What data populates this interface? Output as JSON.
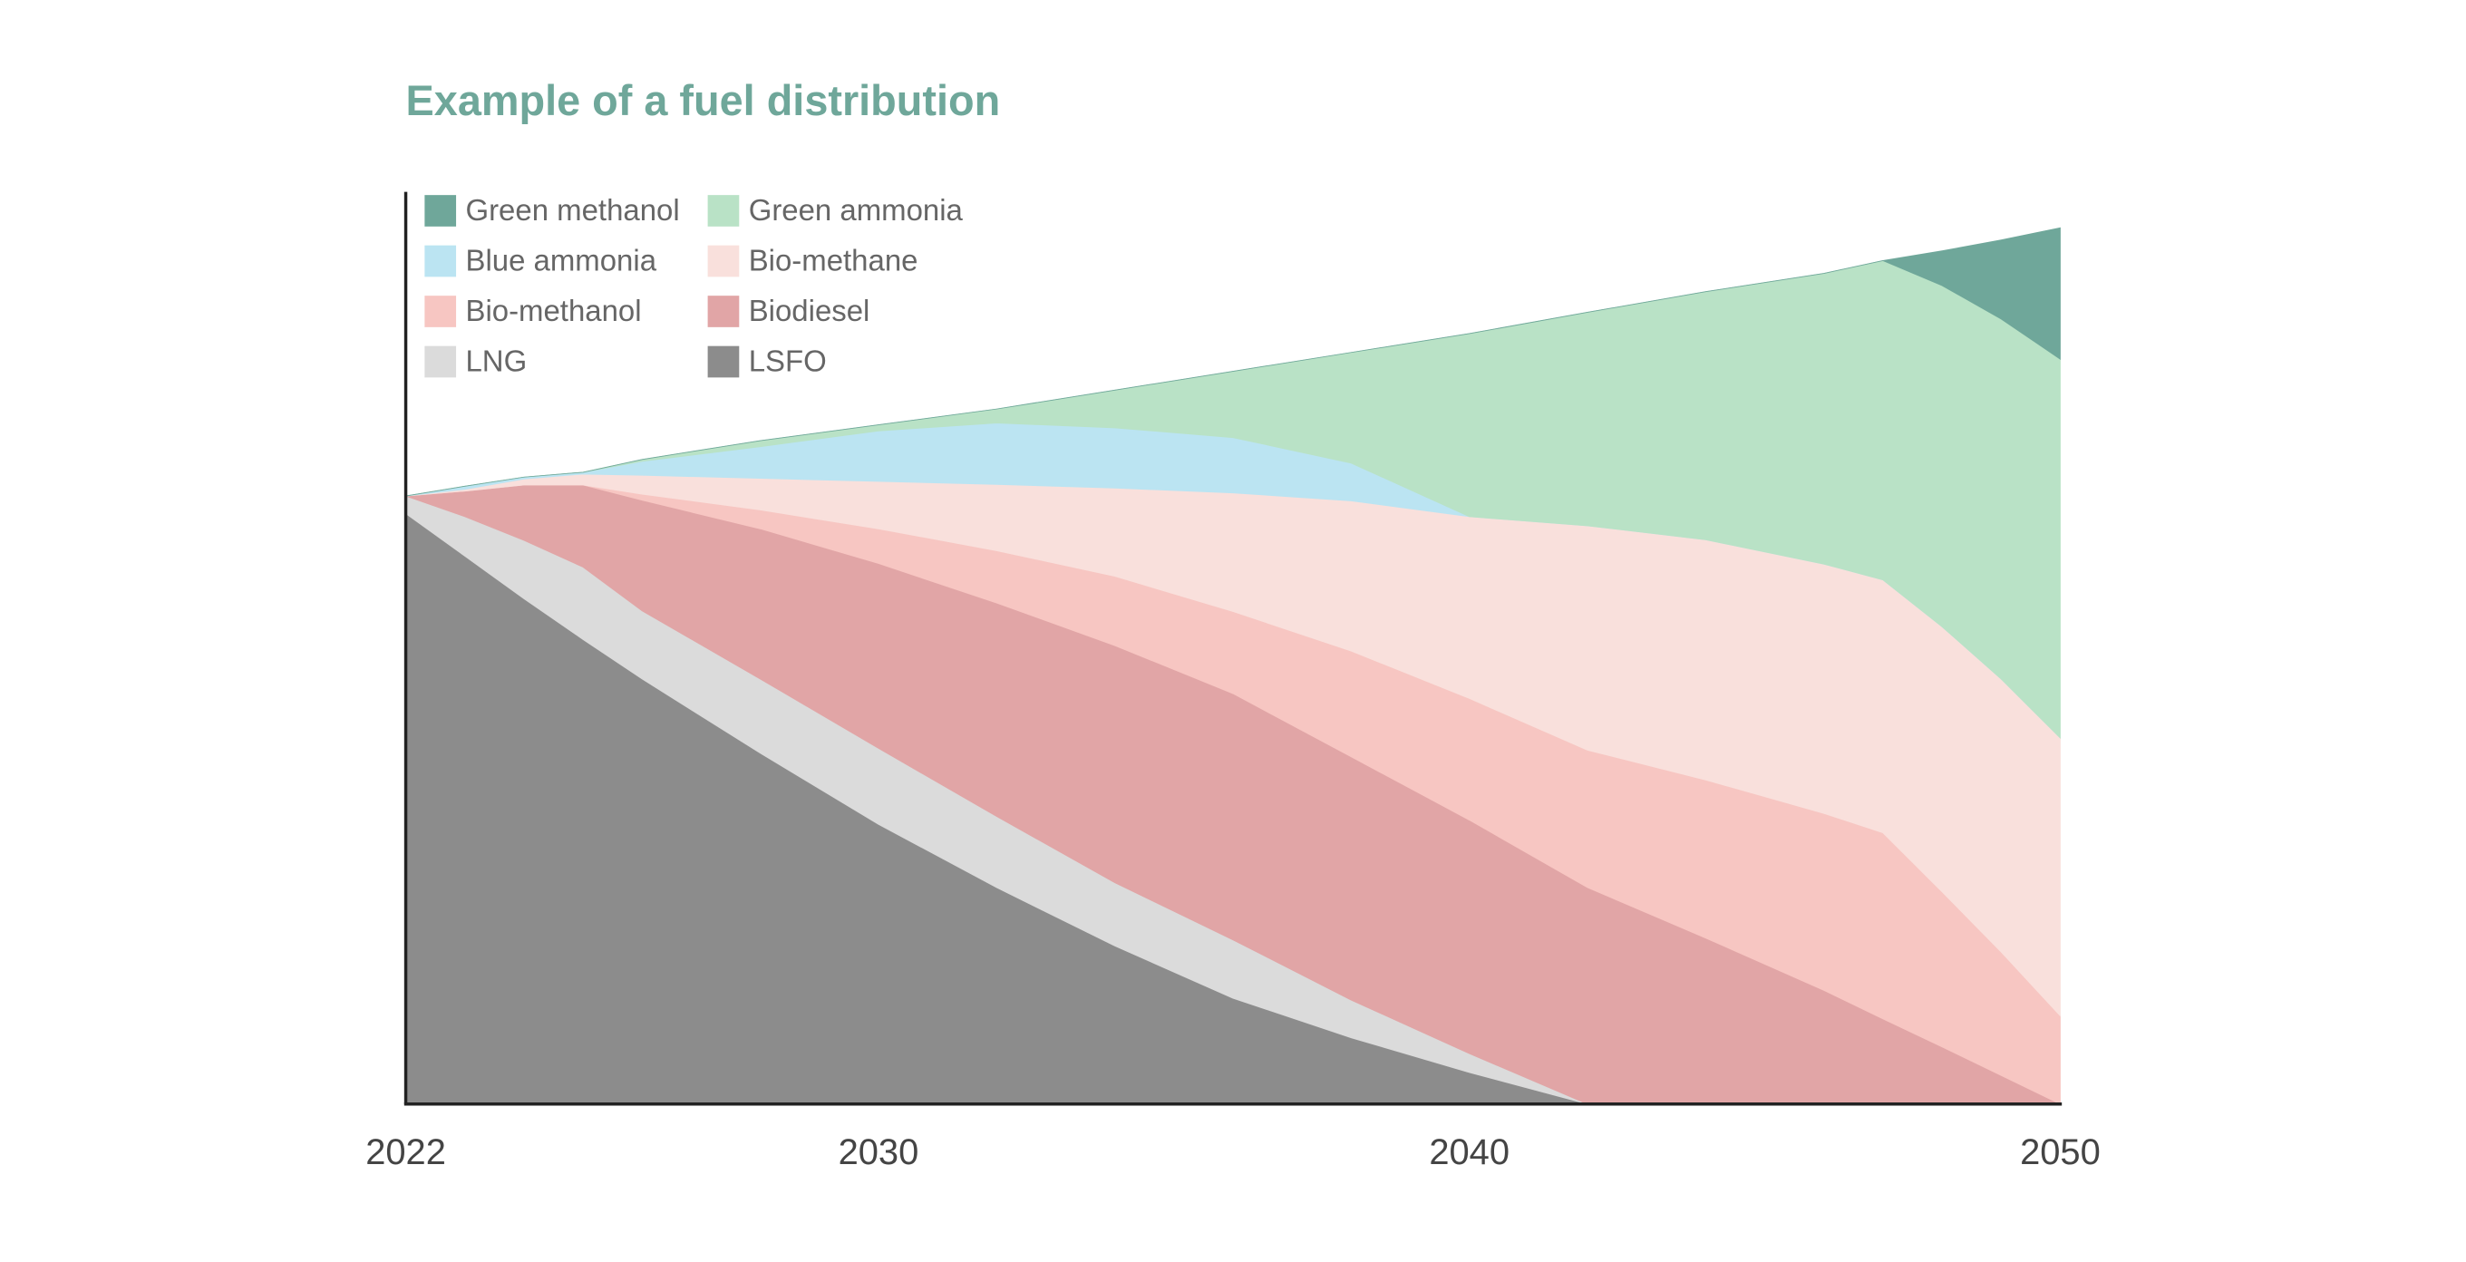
{
  "chart_data": {
    "type": "stacked_area",
    "title": "Example of a fuel distribution",
    "x": [
      2022,
      2023,
      2024,
      2025,
      2026,
      2028,
      2030,
      2032,
      2034,
      2036,
      2038,
      2040,
      2042,
      2044,
      2046,
      2047,
      2048,
      2049,
      2050
    ],
    "xlim": [
      2022,
      2050
    ],
    "xticks": [
      2022,
      2030,
      2040,
      2050
    ],
    "ylim": [
      0,
      150
    ],
    "series": [
      {
        "name": "Green methanol",
        "color": "#6fa79a",
        "values": [
          0,
          0,
          0,
          0,
          0,
          0,
          0,
          0,
          0,
          0,
          0,
          0,
          0,
          0,
          0,
          0,
          5.7,
          13.0,
          21.6
        ]
      },
      {
        "name": "Green ammonia",
        "color": "#b9e2c6",
        "values": [
          0,
          0,
          0,
          0,
          0.3,
          1.0,
          1.0,
          2.3,
          6.2,
          10.9,
          18.2,
          30.1,
          35.1,
          40.8,
          47.8,
          52.5,
          56.1,
          59.2,
          62.3
        ]
      },
      {
        "name": "Blue ammonia",
        "color": "#bbe4f2",
        "values": [
          0,
          0.5,
          0.3,
          0.3,
          2.3,
          5.2,
          8.3,
          10.1,
          9.9,
          9.1,
          6.2,
          0,
          0,
          0,
          0,
          0,
          0,
          0,
          0
        ]
      },
      {
        "name": "Bio-methane",
        "color": "#f9e0dc",
        "values": [
          0,
          0.3,
          1.0,
          1.8,
          3.1,
          5.2,
          7.8,
          10.9,
          14.5,
          19.5,
          24.7,
          29.9,
          36.9,
          39.5,
          41.0,
          41.6,
          43.6,
          44.9,
          45.7
        ]
      },
      {
        "name": "Bio-methanol",
        "color": "#f7c6c2",
        "values": [
          0,
          0,
          0,
          0,
          1.0,
          3.1,
          5.7,
          8.6,
          11.4,
          13.5,
          17.4,
          20.0,
          22.6,
          26.0,
          29.1,
          30.6,
          25.5,
          20.3,
          14.5
        ]
      },
      {
        "name": "Biodiesel",
        "color": "#e1a5a6",
        "values": [
          0,
          4.2,
          9.1,
          13.5,
          18.2,
          24.7,
          30.4,
          35.1,
          39.0,
          40.5,
          40.0,
          38.4,
          35.6,
          27.3,
          18.7,
          14.0,
          9.4,
          4.7,
          0
        ]
      },
      {
        "name": "LNG",
        "color": "#dbdbdb",
        "values": [
          2.9,
          6.5,
          9.6,
          11.9,
          11.2,
          12.2,
          12.5,
          11.7,
          10.4,
          9.6,
          6.2,
          3.1,
          0,
          0,
          0,
          0,
          0,
          0,
          0
        ]
      },
      {
        "name": "LSFO",
        "color": "#8c8c8c",
        "values": [
          97.1,
          90.1,
          83.1,
          76.4,
          69.9,
          57.7,
          46.0,
          35.6,
          26.0,
          17.4,
          10.9,
          5.2,
          0,
          0,
          0,
          0,
          0,
          0,
          0
        ]
      }
    ]
  }
}
